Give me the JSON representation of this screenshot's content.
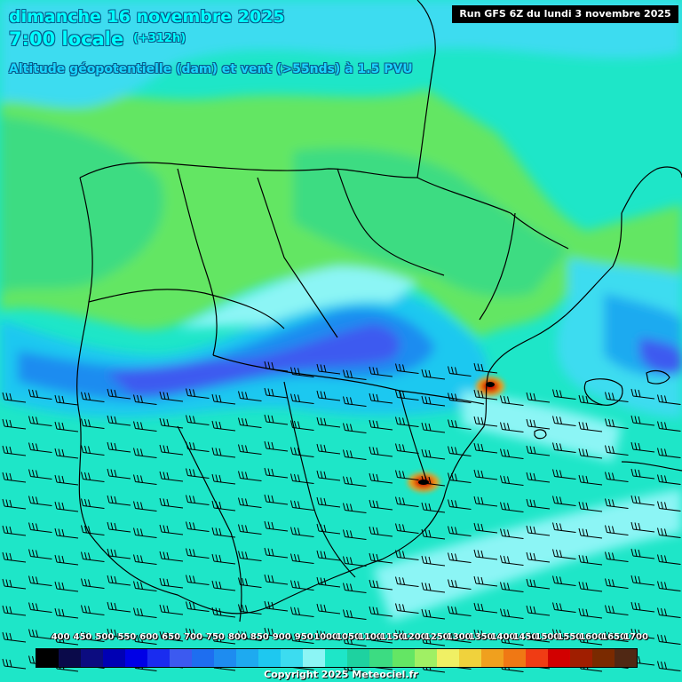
{
  "header": {
    "date": "dimanche 16 novembre 2025",
    "time": "7:00 locale",
    "lead": "(+312h)",
    "field": "Altitude géopotentielle (dam) et vent (>55nds) à 1.5 PVU",
    "run": "Run GFS 6Z du lundi 3 novembre 2025"
  },
  "legend": {
    "labels": [
      "400",
      "450",
      "500",
      "550",
      "600",
      "650",
      "700",
      "750",
      "800",
      "850",
      "900",
      "950",
      "1000",
      "1050",
      "1100",
      "1150",
      "1200",
      "1250",
      "1300",
      "1350",
      "1400",
      "1450",
      "1500",
      "1550",
      "1600",
      "1650",
      "1700"
    ],
    "colors": [
      "#000000",
      "#0a0a4a",
      "#0c0c80",
      "#0000b4",
      "#0000e6",
      "#1a2cf0",
      "#3c5af0",
      "#1e6ef0",
      "#1e8cf0",
      "#1eaaf0",
      "#1ec8f0",
      "#3cdcf0",
      "#8cf5f5",
      "#1ee6c8",
      "#1ed2a0",
      "#3cdc82",
      "#64e664",
      "#a0f064",
      "#f0f064",
      "#f0d23c",
      "#f0a01e",
      "#f07814",
      "#f03c14",
      "#d20000",
      "#a01e00",
      "#7a2a00",
      "#502814"
    ]
  },
  "copyright": "Copyright 2025 Meteociel.fr",
  "map_colors": {
    "teal": "#1ee6c8",
    "green": "#3cdc82",
    "light_green": "#64e664",
    "cyan": "#3cdcf0",
    "sky": "#1ec8f0",
    "blue": "#1e8cf0",
    "deep_blue": "#3c5af0",
    "border": "#000000"
  }
}
